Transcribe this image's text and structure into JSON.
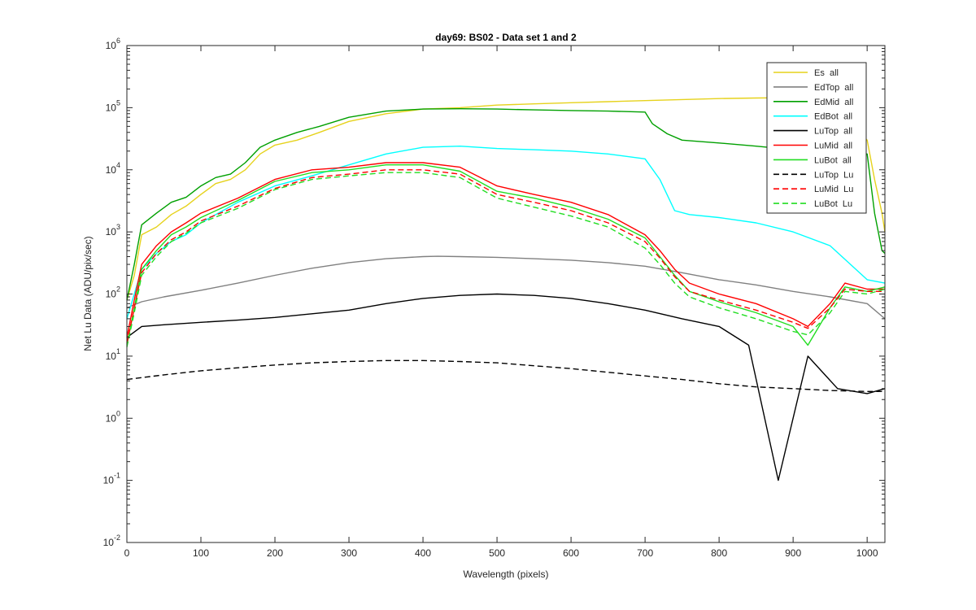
{
  "chart_data": {
    "type": "line",
    "title": "day69: BS02 - Data set 1 and 2",
    "xlabel": "Wavelength (pixels)",
    "ylabel": "Net Lu Data (ADU/pix/sec)",
    "xlim": [
      0,
      1024
    ],
    "ylim": [
      0.01,
      1000000
    ],
    "yscale": "log",
    "grid": false,
    "legend_location": "top-right",
    "x_ticks": [
      0,
      100,
      200,
      300,
      400,
      500,
      600,
      700,
      800,
      900,
      1000
    ],
    "y_ticks": [
      {
        "base": "10",
        "exp": "-2"
      },
      {
        "base": "10",
        "exp": "-1"
      },
      {
        "base": "10",
        "exp": "0"
      },
      {
        "base": "10",
        "exp": "1"
      },
      {
        "base": "10",
        "exp": "2"
      },
      {
        "base": "10",
        "exp": "3"
      },
      {
        "base": "10",
        "exp": "4"
      },
      {
        "base": "10",
        "exp": "5"
      },
      {
        "base": "10",
        "exp": "6"
      }
    ],
    "series": [
      {
        "name": "Es  all",
        "color": "#e6d21c",
        "dash": "solid",
        "x": [
          0,
          10,
          20,
          40,
          60,
          80,
          100,
          120,
          140,
          160,
          180,
          200,
          230,
          260,
          300,
          350,
          400,
          450,
          500,
          550,
          600,
          650,
          700,
          750,
          800,
          850,
          900,
          950,
          1000,
          1010,
          1020,
          1024
        ],
        "y": [
          80,
          200,
          900,
          1200,
          1900,
          2600,
          4000,
          6000,
          7000,
          10000,
          18000,
          25000,
          30000,
          40000,
          60000,
          80000,
          95000,
          100000,
          110000,
          115000,
          120000,
          125000,
          130000,
          135000,
          140000,
          143000,
          145000,
          140000,
          30000,
          7000,
          2000,
          1000
        ]
      },
      {
        "name": "EdTop  all",
        "color": "#808080",
        "dash": "solid",
        "x": [
          0,
          20,
          50,
          100,
          150,
          200,
          250,
          300,
          350,
          400,
          420,
          450,
          500,
          550,
          600,
          650,
          700,
          750,
          800,
          850,
          900,
          950,
          1000,
          1024
        ],
        "y": [
          60,
          75,
          90,
          115,
          150,
          200,
          260,
          320,
          370,
          400,
          405,
          400,
          390,
          370,
          350,
          320,
          280,
          220,
          170,
          140,
          110,
          90,
          70,
          40
        ]
      },
      {
        "name": "EdMid  all",
        "color": "#00a000",
        "dash": "solid",
        "x": [
          0,
          10,
          20,
          40,
          60,
          80,
          100,
          120,
          140,
          160,
          180,
          200,
          230,
          260,
          300,
          350,
          400,
          450,
          500,
          550,
          600,
          650,
          700,
          710,
          730,
          750,
          800,
          850,
          900,
          950,
          1000,
          1010,
          1020,
          1024
        ],
        "y": [
          80,
          300,
          1300,
          2000,
          3000,
          3600,
          5500,
          7500,
          8500,
          13000,
          23000,
          30000,
          40000,
          50000,
          70000,
          88000,
          95000,
          96000,
          95000,
          92000,
          90000,
          88000,
          85000,
          55000,
          38000,
          30000,
          27000,
          24000,
          21000,
          20000,
          18000,
          2000,
          500,
          450
        ]
      },
      {
        "name": "EdBot  all",
        "color": "#00ffff",
        "dash": "solid",
        "x": [
          0,
          10,
          20,
          40,
          60,
          80,
          100,
          150,
          200,
          250,
          300,
          350,
          400,
          450,
          500,
          550,
          600,
          650,
          700,
          720,
          740,
          760,
          800,
          850,
          900,
          950,
          1000,
          1024
        ],
        "y": [
          40,
          100,
          250,
          450,
          700,
          900,
          1400,
          3000,
          5500,
          8000,
          12000,
          18000,
          23000,
          24000,
          22000,
          21000,
          20000,
          18000,
          15000,
          7000,
          2200,
          1900,
          1700,
          1400,
          1000,
          600,
          170,
          150
        ]
      },
      {
        "name": "LuTop  all",
        "color": "#000000",
        "dash": "solid",
        "x": [
          0,
          20,
          50,
          100,
          150,
          200,
          250,
          300,
          350,
          400,
          450,
          500,
          550,
          600,
          650,
          700,
          750,
          800,
          840,
          880,
          920,
          960,
          1000,
          1024
        ],
        "y": [
          20,
          30,
          32,
          35,
          38,
          42,
          48,
          55,
          70,
          85,
          95,
          100,
          95,
          85,
          70,
          55,
          40,
          30,
          15,
          0.1,
          10,
          3,
          2.5,
          3
        ]
      },
      {
        "name": "LuMid  all",
        "color": "#ff0000",
        "dash": "solid",
        "x": [
          0,
          10,
          20,
          40,
          60,
          80,
          100,
          150,
          200,
          250,
          300,
          350,
          400,
          450,
          500,
          550,
          600,
          650,
          700,
          720,
          740,
          760,
          800,
          850,
          900,
          920,
          950,
          970,
          1000,
          1024
        ],
        "y": [
          20,
          80,
          300,
          600,
          1000,
          1400,
          2000,
          3500,
          7000,
          10000,
          11000,
          13000,
          13000,
          11000,
          5500,
          4000,
          3000,
          1900,
          900,
          500,
          250,
          150,
          100,
          70,
          40,
          30,
          70,
          150,
          120,
          120
        ]
      },
      {
        "name": "LuBot  all",
        "color": "#22dd22",
        "dash": "solid",
        "x": [
          0,
          10,
          20,
          40,
          60,
          80,
          100,
          150,
          200,
          250,
          300,
          350,
          400,
          450,
          500,
          550,
          600,
          650,
          700,
          720,
          740,
          760,
          800,
          850,
          900,
          920,
          950,
          970,
          1000,
          1024
        ],
        "y": [
          15,
          60,
          250,
          500,
          900,
          1200,
          1700,
          3200,
          6500,
          9000,
          10000,
          12000,
          12000,
          9500,
          4500,
          3500,
          2500,
          1600,
          800,
          400,
          200,
          110,
          75,
          50,
          30,
          15,
          60,
          130,
          110,
          130
        ]
      },
      {
        "name": "LuTop  Lu",
        "color": "#000000",
        "dash": "dashed",
        "x": [
          0,
          50,
          100,
          150,
          200,
          250,
          300,
          350,
          400,
          450,
          500,
          550,
          600,
          650,
          700,
          750,
          800,
          850,
          900,
          950,
          1000,
          1024
        ],
        "y": [
          4.2,
          5,
          5.8,
          6.5,
          7.2,
          7.8,
          8.2,
          8.5,
          8.5,
          8.2,
          7.8,
          7,
          6.3,
          5.5,
          4.8,
          4.2,
          3.6,
          3.2,
          3,
          2.8,
          2.7,
          2.7
        ]
      },
      {
        "name": "LuMid  Lu",
        "color": "#ff0000",
        "dash": "dashed",
        "x": [
          0,
          10,
          20,
          40,
          60,
          80,
          100,
          150,
          200,
          250,
          300,
          350,
          400,
          450,
          500,
          550,
          600,
          650,
          700,
          720,
          740,
          760,
          800,
          850,
          900,
          920,
          950,
          970,
          1000,
          1024
        ],
        "y": [
          16,
          60,
          220,
          450,
          750,
          1000,
          1500,
          2600,
          5000,
          7500,
          8500,
          10000,
          10000,
          8500,
          4000,
          3000,
          2200,
          1400,
          700,
          380,
          190,
          110,
          80,
          55,
          35,
          28,
          60,
          120,
          110,
          110
        ]
      },
      {
        "name": "LuBot  Lu",
        "color": "#22dd22",
        "dash": "dashed",
        "x": [
          0,
          10,
          20,
          40,
          60,
          80,
          100,
          150,
          200,
          250,
          300,
          350,
          400,
          450,
          500,
          550,
          600,
          650,
          700,
          720,
          740,
          760,
          800,
          850,
          900,
          920,
          950,
          970,
          1000,
          1024
        ],
        "y": [
          14,
          50,
          200,
          400,
          700,
          950,
          1400,
          2400,
          4800,
          7000,
          8000,
          9000,
          9000,
          7500,
          3500,
          2500,
          1800,
          1200,
          550,
          300,
          150,
          90,
          60,
          40,
          25,
          22,
          50,
          110,
          100,
          120
        ]
      }
    ]
  }
}
